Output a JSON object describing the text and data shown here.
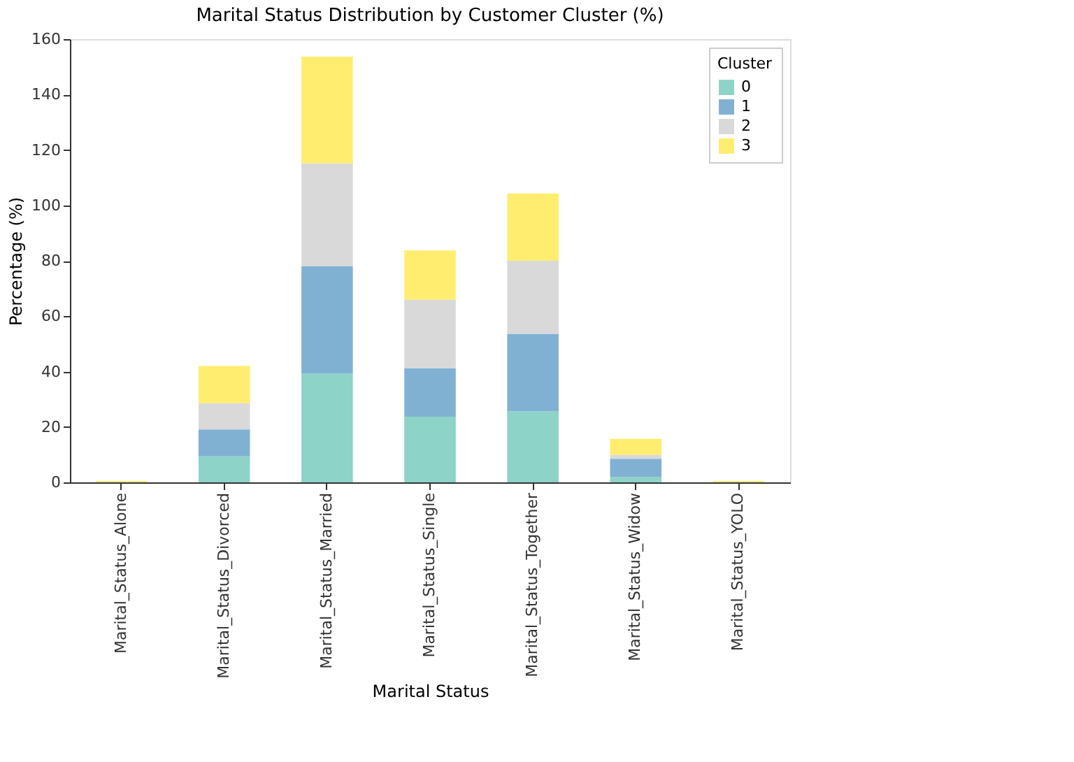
{
  "chart_data": {
    "type": "bar",
    "stacked": true,
    "title": "Marital Status Distribution by Customer Cluster (%)",
    "xlabel": "Marital Status",
    "ylabel": "Percentage (%)",
    "legend_title": "Cluster",
    "legend": "top right",
    "grid": false,
    "categories": [
      "Marital_Status_Alone",
      "Marital_Status_Divorced",
      "Marital_Status_Married",
      "Marital_Status_Single",
      "Marital_Status_Together",
      "Marital_Status_Widow",
      "Marital_Status_YOLO"
    ],
    "ylim": [
      0,
      160
    ],
    "yticks": [
      0,
      20,
      40,
      60,
      80,
      100,
      120,
      140,
      160
    ],
    "series": [
      {
        "name": "0",
        "color": "#8dd3c7",
        "values": [
          0,
          9.4,
          39.3,
          23.7,
          25.7,
          1.9,
          0
        ]
      },
      {
        "name": "1",
        "color": "#80b1d3",
        "values": [
          0,
          9.7,
          38.7,
          17.5,
          27.9,
          6.6,
          0
        ]
      },
      {
        "name": "2",
        "color": "#d9d9d9",
        "values": [
          0,
          9.5,
          37.2,
          24.8,
          26.4,
          1.5,
          0
        ]
      },
      {
        "name": "3",
        "color": "#ffed6f",
        "values": [
          0.5,
          13.4,
          38.5,
          17.7,
          24.3,
          5.7,
          0.5
        ]
      }
    ]
  }
}
